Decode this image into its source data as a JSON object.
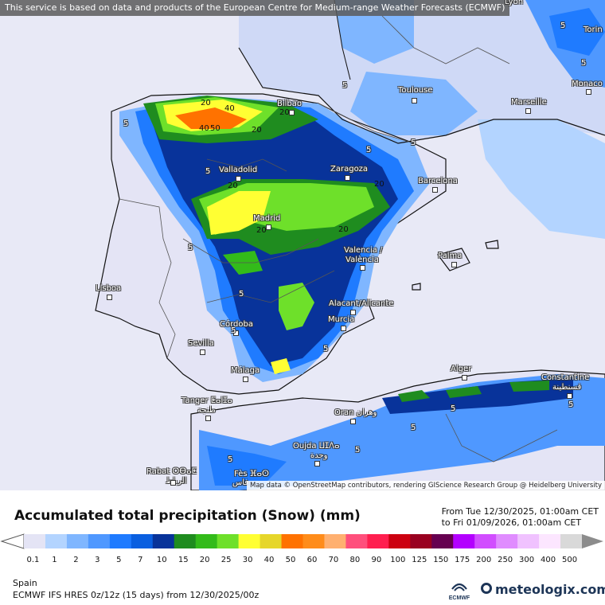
{
  "notice": "This service is based on data and products of the European Centre for Medium-range Weather Forecasts (ECMWF)",
  "attribution": "Map data © OpenStreetMap contributors, rendering GIScience Research Group @ Heidelberg University",
  "title": "Accumulated total precipitation (Snow) (mm)",
  "range_from": "From Tue 12/30/2025, 01:00am CET",
  "range_to": "to Fri 01/09/2026, 01:00am CET",
  "region": "Spain",
  "model": "ECMWF IFS HRES 0z/12z (15 days) from 12/30/2025/00z",
  "brand": "meteologix.com",
  "ecmwf_label": "ECMWF",
  "cities": [
    {
      "name": "Lyon"
    },
    {
      "name": "Torin"
    },
    {
      "name": "Monaco"
    },
    {
      "name": "Toulouse"
    },
    {
      "name": "Marseille"
    },
    {
      "name": "Bilbao"
    },
    {
      "name": "Valladolid"
    },
    {
      "name": "Zaragoza"
    },
    {
      "name": "Barcelona"
    },
    {
      "name": "Madrid"
    },
    {
      "name": "Valencia /"
    },
    {
      "name": "València"
    },
    {
      "name": "Palma"
    },
    {
      "name": "Lisboa"
    },
    {
      "name": "Alacant/Alicante"
    },
    {
      "name": "Murcia"
    },
    {
      "name": "Córdoba"
    },
    {
      "name": "Sevilla"
    },
    {
      "name": "Málaga"
    },
    {
      "name": "Alger"
    },
    {
      "name": "Constantine"
    },
    {
      "name": "قسنطينة"
    },
    {
      "name": "Tanger ⵟⴰⵏⵊⴰ"
    },
    {
      "name": "طنجة"
    },
    {
      "name": "Oran وهران"
    },
    {
      "name": "Oujda ⵡⵊⴷⴰ"
    },
    {
      "name": "وجدة"
    },
    {
      "name": "Rabat ⵔⴱⴰⵟ"
    },
    {
      "name": "الرباط"
    },
    {
      "name": "Fès ⴼⴰⵙ"
    },
    {
      "name": "فاس"
    }
  ],
  "contour_labels": [
    "5",
    "5",
    "5",
    "5",
    "5",
    "5",
    "5",
    "5",
    "5",
    "5",
    "5",
    "5",
    "5",
    "5",
    "5",
    "5",
    "20",
    "20",
    "20",
    "20",
    "20",
    "20",
    "20",
    "40",
    "40",
    "50"
  ],
  "legend": {
    "values": [
      "0.1",
      "1",
      "2",
      "3",
      "5",
      "7",
      "10",
      "15",
      "20",
      "25",
      "30",
      "40",
      "50",
      "60",
      "70",
      "80",
      "90",
      "100",
      "125",
      "150",
      "175",
      "200",
      "250",
      "300",
      "400",
      "500"
    ],
    "colors": [
      "#e4e4f5",
      "#b3d4ff",
      "#7fb6ff",
      "#4f98ff",
      "#1f7bff",
      "#0a5fe0",
      "#08339a",
      "#1f8c1f",
      "#33bb1a",
      "#6ee02a",
      "#ffff33",
      "#e6d62a",
      "#ff7200",
      "#ff8c1a",
      "#ffb070",
      "#ff4f7c",
      "#ff1f4f",
      "#cc0010",
      "#990020",
      "#660050",
      "#b300ff",
      "#d14dff",
      "#e08cff",
      "#f0c2ff",
      "#fce6ff",
      "#d9d9d9"
    ]
  }
}
